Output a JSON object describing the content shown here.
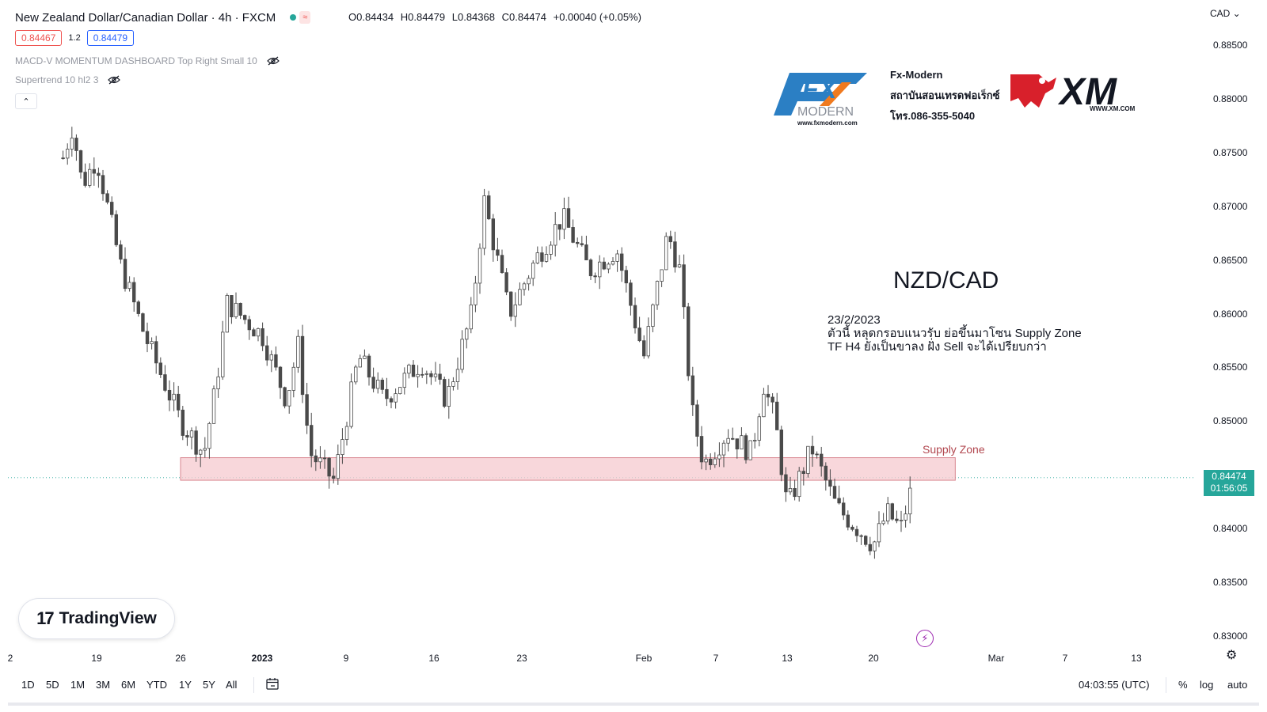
{
  "header": {
    "title": "New Zealand Dollar/Canadian Dollar · 4h · FXCM",
    "status_icon": "≈",
    "ohlc": {
      "open": "O0.84434",
      "high": "H0.84479",
      "low": "L0.84368",
      "close": "C0.84474",
      "change": "+0.00040 (+0.05%)"
    }
  },
  "pills": {
    "bid": "0.84467",
    "spread": "1.2",
    "ask": "0.84479"
  },
  "indicators": [
    {
      "label": "MACD-V MOMENTUM DASHBOARD Top Right Small 10"
    },
    {
      "label": "Supertrend 10 hl2 3"
    }
  ],
  "collapse_icon": "⌃",
  "currency": "CAD ⌄",
  "y_axis": [
    "0.88500",
    "0.88000",
    "0.87500",
    "0.87000",
    "0.86500",
    "0.86000",
    "0.85500",
    "0.85000",
    "0.84500",
    "0.84000",
    "0.83500",
    "0.83000"
  ],
  "x_axis": [
    {
      "label": "2",
      "bold": false
    },
    {
      "label": "19",
      "bold": false
    },
    {
      "label": "26",
      "bold": false
    },
    {
      "label": "2023",
      "bold": true
    },
    {
      "label": "9",
      "bold": false
    },
    {
      "label": "16",
      "bold": false
    },
    {
      "label": "23",
      "bold": false
    },
    {
      "label": "Feb",
      "bold": false
    },
    {
      "label": "7",
      "bold": false
    },
    {
      "label": "13",
      "bold": false
    },
    {
      "label": "20",
      "bold": false
    },
    {
      "label": "Mar",
      "bold": false
    },
    {
      "label": "7",
      "bold": false
    },
    {
      "label": "13",
      "bold": false
    }
  ],
  "last_price": {
    "price": "0.84474",
    "countdown": "01:56:05"
  },
  "annotation": {
    "title": "NZD/CAD",
    "date": "23/2/2023",
    "line1": "ตัวนี้ หลุดกรอบแนวรับ ย่อขึ้นมาโซน Supply Zone",
    "line2": "TF H4 ยังเป็นขาลง ฝั่ง Sell จะได้เปรียบกว่า",
    "supply_label": "Supply Zone"
  },
  "logos": {
    "fx_modern_big": "FX",
    "fx_modern_word": "MODERN",
    "fx_modern_url": "www.fxmodern.com",
    "fx_name": "Fx-Modern",
    "fx_thai": "สถาบันสอนเทรดฟอเร็กซ์",
    "fx_phone": "โทร.086-355-5040",
    "xm": "XM",
    "xm_url": "WWW.XM.COM",
    "tradingview": "TradingView",
    "tradingview_mark": "17"
  },
  "bottom_bar": {
    "ranges": [
      "1D",
      "5D",
      "1M",
      "3M",
      "6M",
      "YTD",
      "1Y",
      "5Y",
      "All"
    ],
    "time": "04:03:55 (UTC)",
    "percent": "%",
    "log": "log",
    "auto": "auto"
  },
  "colors": {
    "up": "#26a69a",
    "down": "#ef5350",
    "candle": "#4a4a4a",
    "zone_fill": "#f6c9cf",
    "zone_border": "#d9868f"
  },
  "chart_data": {
    "type": "candlestick",
    "symbol": "NZD/CAD",
    "timeframe": "4h",
    "ylim": [
      0.8275,
      0.8895
    ],
    "supply_zone": {
      "from": "Dec 26",
      "to": "Feb 26",
      "low": 0.8445,
      "high": 0.8466
    },
    "last_price": 0.84474,
    "path": [
      {
        "date": "Dec 12",
        "close": 0.8745
      },
      {
        "date": "Dec 14",
        "close": 0.8775
      },
      {
        "date": "Dec 16",
        "close": 0.872
      },
      {
        "date": "Dec 19",
        "close": 0.8745
      },
      {
        "date": "Dec 21",
        "close": 0.8645
      },
      {
        "date": "Dec 23",
        "close": 0.858
      },
      {
        "date": "Dec 26",
        "close": 0.85
      },
      {
        "date": "Dec 28",
        "close": 0.847
      },
      {
        "date": "Dec 29",
        "close": 0.853
      },
      {
        "date": "Dec 30",
        "close": 0.861
      },
      {
        "date": "Jan 2",
        "close": 0.858
      },
      {
        "date": "Jan 4",
        "close": 0.852
      },
      {
        "date": "Jan 5",
        "close": 0.857
      },
      {
        "date": "Jan 6",
        "close": 0.847
      },
      {
        "date": "Jan 8",
        "close": 0.8445
      },
      {
        "date": "Jan 10",
        "close": 0.856
      },
      {
        "date": "Jan 12",
        "close": 0.852
      },
      {
        "date": "Jan 15",
        "close": 0.8555
      },
      {
        "date": "Jan 17",
        "close": 0.852
      },
      {
        "date": "Jan 19",
        "close": 0.86
      },
      {
        "date": "Jan 20",
        "close": 0.8705
      },
      {
        "date": "Jan 22",
        "close": 0.86
      },
      {
        "date": "Jan 24",
        "close": 0.865
      },
      {
        "date": "Jan 26",
        "close": 0.869
      },
      {
        "date": "Jan 28",
        "close": 0.864
      },
      {
        "date": "Jan 30",
        "close": 0.866
      },
      {
        "date": "Feb 1",
        "close": 0.856
      },
      {
        "date": "Feb 3",
        "close": 0.8675
      },
      {
        "date": "Feb 4",
        "close": 0.864
      },
      {
        "date": "Feb 5",
        "close": 0.851
      },
      {
        "date": "Feb 6",
        "close": 0.846
      },
      {
        "date": "Feb 8",
        "close": 0.849
      },
      {
        "date": "Feb 10",
        "close": 0.847
      },
      {
        "date": "Feb 11",
        "close": 0.8535
      },
      {
        "date": "Feb 12",
        "close": 0.85
      },
      {
        "date": "Feb 13",
        "close": 0.842
      },
      {
        "date": "Feb 15",
        "close": 0.8475
      },
      {
        "date": "Feb 17",
        "close": 0.842
      },
      {
        "date": "Feb 20",
        "close": 0.8385
      },
      {
        "date": "Feb 21",
        "close": 0.8415
      },
      {
        "date": "Feb 22",
        "close": 0.84
      },
      {
        "date": "Feb 23",
        "close": 0.8447
      }
    ]
  }
}
